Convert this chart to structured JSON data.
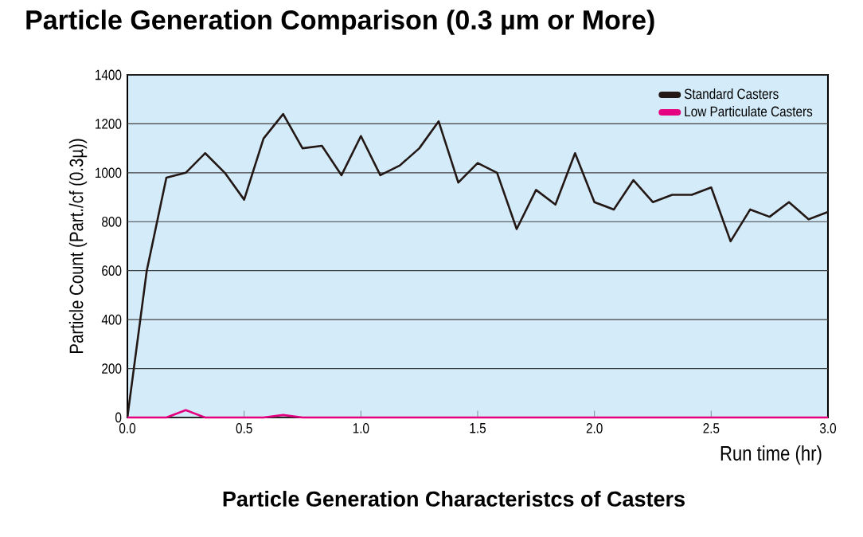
{
  "chart_data": {
    "type": "line",
    "title": "Particle Generation Comparison (0.3 µm or More)",
    "xlabel": "Run time (hr)",
    "ylabel": "Particle Count (Part./cf (0.3µ))",
    "annotations": [
      "Particle Generation Characteristcs of Casters"
    ],
    "x": [
      0,
      0.083,
      0.167,
      0.25,
      0.333,
      0.417,
      0.5,
      0.583,
      0.667,
      0.75,
      0.833,
      0.917,
      1.0,
      1.083,
      1.167,
      1.25,
      1.333,
      1.417,
      1.5,
      1.583,
      1.667,
      1.75,
      1.833,
      1.917,
      2.0,
      2.083,
      2.167,
      2.25,
      2.333,
      2.417,
      2.5,
      2.583,
      2.667,
      2.75,
      2.833,
      2.917,
      3.0
    ],
    "series": [
      {
        "name": "Standard Casters",
        "color": "#231815",
        "values": [
          0,
          600,
          980,
          1000,
          1080,
          1000,
          890,
          1140,
          1240,
          1100,
          1110,
          990,
          1150,
          990,
          1030,
          1100,
          1210,
          960,
          1040,
          1000,
          770,
          930,
          870,
          1080,
          880,
          850,
          970,
          880,
          910,
          910,
          940,
          720,
          850,
          820,
          880,
          810,
          840
        ]
      },
      {
        "name": "Low Particulate Casters",
        "color": "#e4007f",
        "values": [
          0,
          0,
          0,
          30,
          0,
          0,
          0,
          0,
          10,
          0,
          0,
          0,
          0,
          0,
          0,
          0,
          0,
          0,
          0,
          0,
          0,
          0,
          0,
          0,
          0,
          0,
          0,
          0,
          0,
          0,
          0,
          0,
          0,
          0,
          0,
          0,
          0
        ]
      }
    ],
    "xlim": [
      0,
      3.0
    ],
    "ylim": [
      0,
      1400
    ],
    "xticks": [
      {
        "value": 0,
        "label": "0.0"
      },
      0.5,
      {
        "value": 1,
        "label": "1.0"
      },
      1.5,
      {
        "value": 2,
        "label": "2.0"
      },
      2.5,
      {
        "value": 3,
        "label": "3.0"
      }
    ],
    "yticks": [
      0,
      200,
      400,
      600,
      800,
      1000,
      1200,
      1400
    ],
    "grid": "y",
    "legend": "top right",
    "marker": "none",
    "line_style": "solid"
  }
}
